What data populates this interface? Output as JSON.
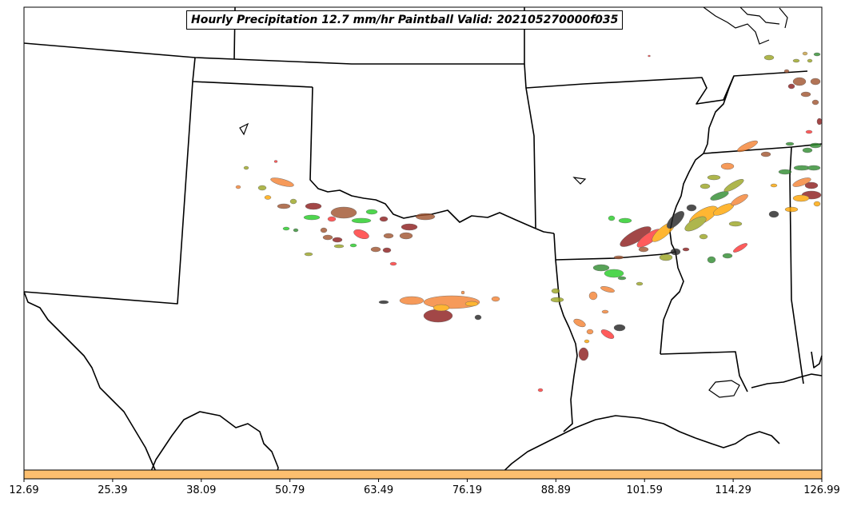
{
  "title": "Hourly Precipitation 12.7 mm/hr Paintball Valid: 202105270000f035",
  "colorbar": {
    "color": "#fdbf6f",
    "ticks": [
      "12.69",
      "25.39",
      "38.09",
      "50.79",
      "63.49",
      "76.19",
      "88.89",
      "101.59",
      "114.29",
      "126.99"
    ]
  },
  "member_colors": [
    "#8b1a1a",
    "#a0522d",
    "#ff3333",
    "#22cc22",
    "#f58231",
    "#ffa500",
    "#9aa520",
    "#2e8b2e",
    "#222222",
    "#c8a040"
  ]
}
